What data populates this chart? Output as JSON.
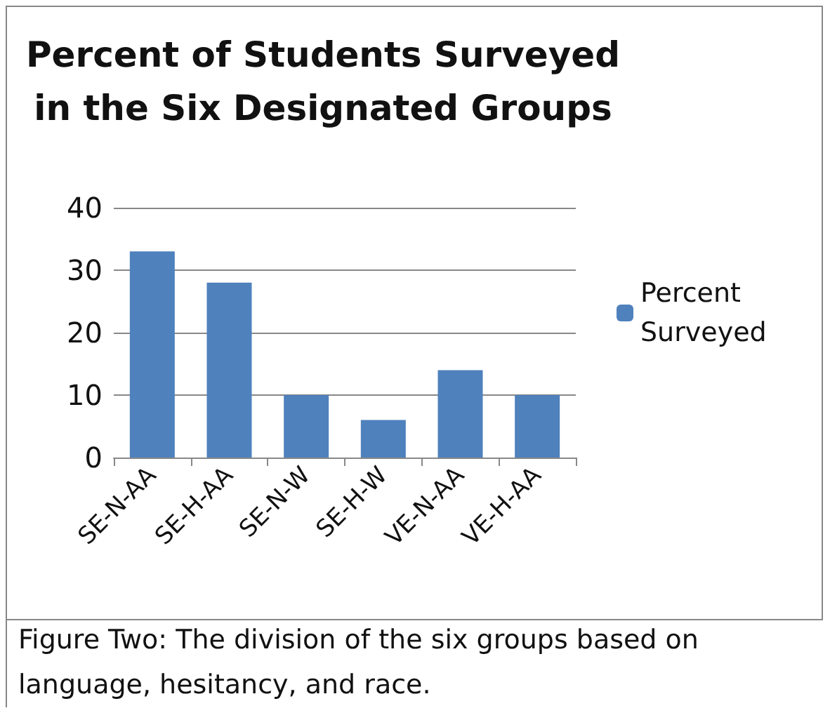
{
  "chart_data": {
    "type": "bar",
    "title": "Percent of Students Surveyed\nin the Six Designated Groups",
    "categories": [
      "SE-N-AA",
      "SE-H-AA",
      "SE-N-W",
      "SE-H-W",
      "VE-N-AA",
      "VE-H-AA"
    ],
    "series": [
      {
        "name": "Percent Surveyed",
        "color": "#4f81bd",
        "values": [
          33,
          28,
          10,
          6,
          14,
          10
        ]
      }
    ],
    "ylim": [
      0,
      40
    ],
    "yticks": [
      0,
      10,
      20,
      30,
      40
    ],
    "grid": "y",
    "legend": "right",
    "annotations": [
      "Figure Two: The division of the six groups based on language, hesitancy, and race."
    ]
  }
}
